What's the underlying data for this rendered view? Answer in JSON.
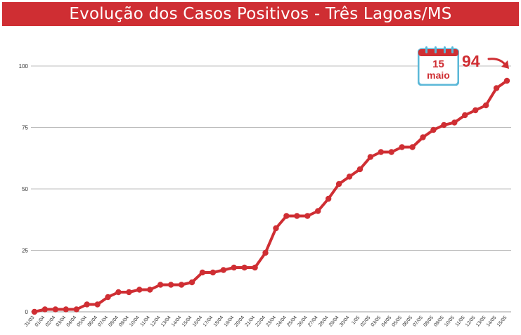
{
  "header": {
    "title": "Evolução dos Casos Positivos - Três Lagoas/MS"
  },
  "callout": {
    "day": "15",
    "month": "maio",
    "value": "94"
  },
  "colors": {
    "accent": "#cf2e33",
    "calendar_blue": "#5bb8d8",
    "grid": "#bdbdbd"
  },
  "chart_data": {
    "type": "line",
    "title": "Evolução dos Casos Positivos - Três Lagoas/MS",
    "xlabel": "",
    "ylabel": "",
    "ylim": [
      0,
      100
    ],
    "yticks": [
      0,
      25,
      50,
      75,
      100
    ],
    "grid": true,
    "categories": [
      "31/03",
      "01/04",
      "02/04",
      "03/04",
      "04/04",
      "05/04",
      "06/04",
      "07/04",
      "08/04",
      "09/04",
      "10/04",
      "11/04",
      "12/04",
      "13/04",
      "14/04",
      "15/04",
      "16/04",
      "17/04",
      "18/04",
      "19/04",
      "20/04",
      "21/04",
      "22/04",
      "23/04",
      "24/04",
      "25/04",
      "26/04",
      "27/04",
      "28/04",
      "29/04",
      "30/04",
      "1/05",
      "02/05",
      "03/05",
      "04/05",
      "05/05",
      "06/05",
      "07/05",
      "08/05",
      "09/05",
      "10/05",
      "11/05",
      "12/05",
      "13/05",
      "14/05",
      "15/05"
    ],
    "values": [
      0,
      1,
      1,
      1,
      1,
      3,
      3,
      6,
      8,
      8,
      9,
      9,
      11,
      11,
      11,
      12,
      16,
      16,
      17,
      18,
      18,
      18,
      24,
      34,
      39,
      39,
      39,
      41,
      46,
      52,
      55,
      58,
      63,
      65,
      65,
      67,
      67,
      71,
      74,
      76,
      77,
      80,
      82,
      84,
      91,
      94
    ]
  }
}
